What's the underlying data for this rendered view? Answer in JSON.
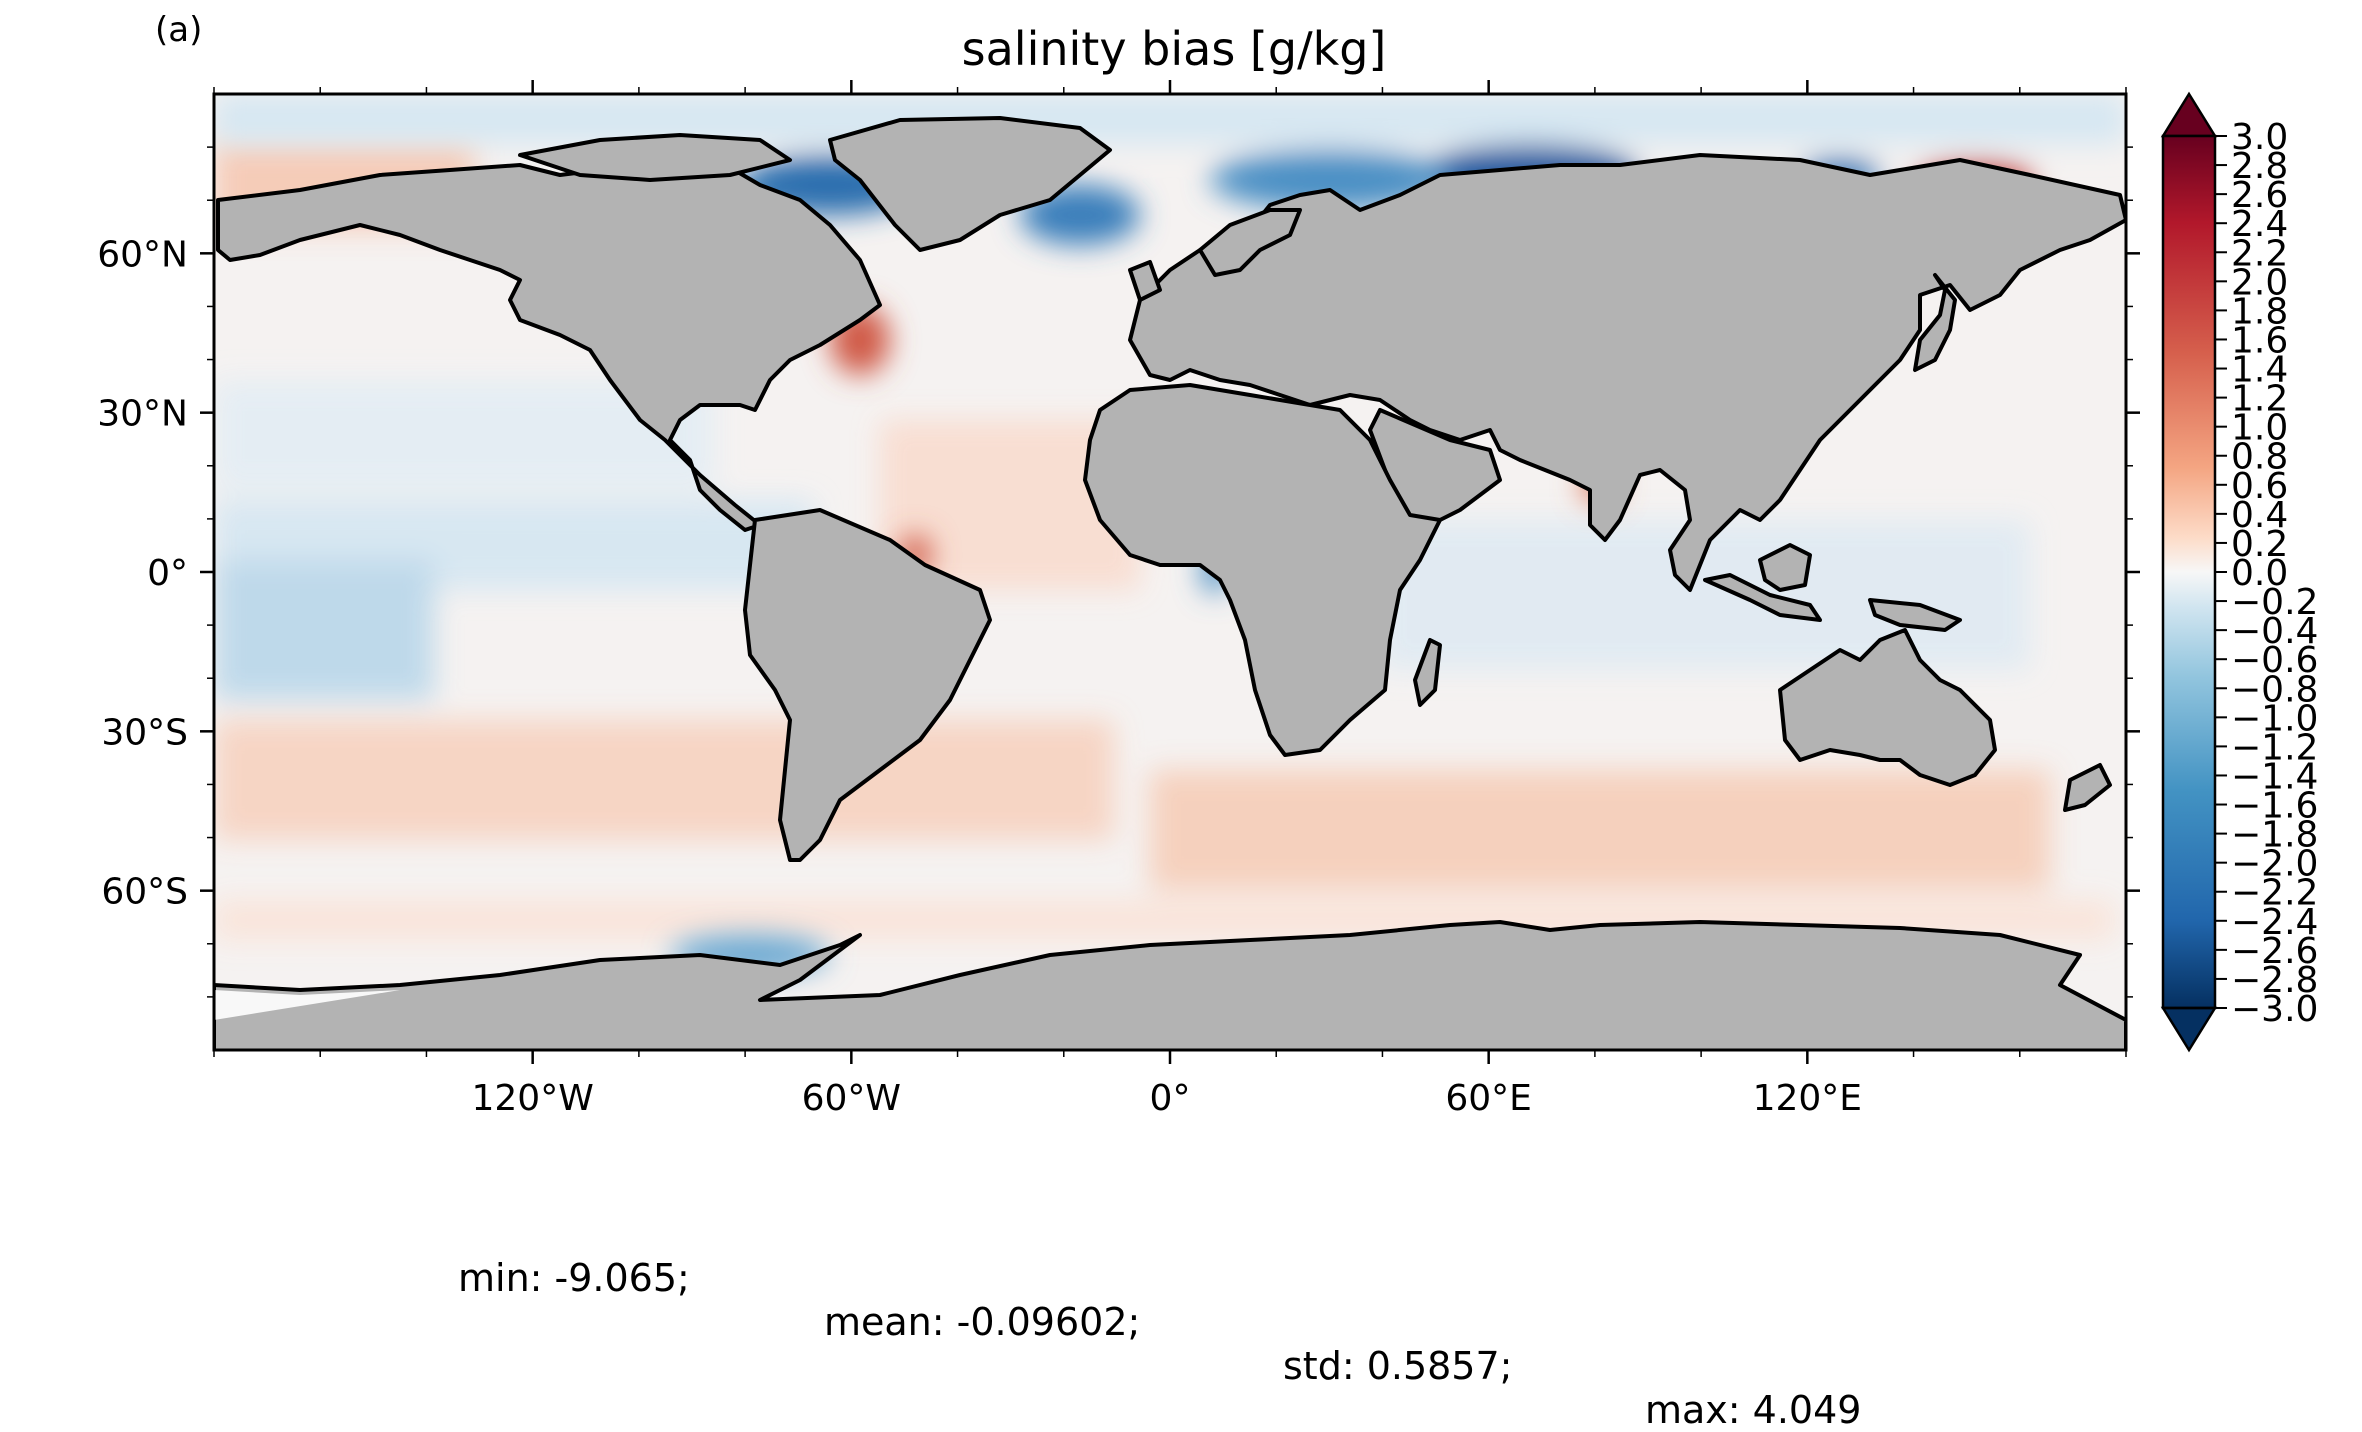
{
  "panel_label": "(a)",
  "title": "salinity bias [g/kg]",
  "map": {
    "projection": "PlateCarree",
    "lon_range": [
      -180,
      180
    ],
    "lat_range": [
      -90,
      90
    ],
    "land_color": "#b3b3b3",
    "coastline_color": "#000000",
    "lat_ticks": [
      {
        "value": 60,
        "label": "60°N"
      },
      {
        "value": 30,
        "label": "30°N"
      },
      {
        "value": 0,
        "label": "0°"
      },
      {
        "value": -30,
        "label": "30°S"
      },
      {
        "value": -60,
        "label": "60°S"
      }
    ],
    "lon_ticks": [
      {
        "value": -120,
        "label": "120°W"
      },
      {
        "value": -60,
        "label": "60°W"
      },
      {
        "value": 0,
        "label": "0°"
      },
      {
        "value": 60,
        "label": "60°E"
      },
      {
        "value": 120,
        "label": "120°E"
      }
    ]
  },
  "colorbar": {
    "colormap": "RdBu_r",
    "min": -3.0,
    "max": 3.0,
    "extend": "both",
    "tick_labels": [
      "3.0",
      "2.8",
      "2.6",
      "2.4",
      "2.2",
      "2.0",
      "1.8",
      "1.6",
      "1.4",
      "1.2",
      "1.0",
      "0.8",
      "0.6",
      "0.4",
      "0.2",
      "0.0",
      "−0.2",
      "−0.4",
      "−0.6",
      "−0.8",
      "−1.0",
      "−1.2",
      "−1.4",
      "−1.6",
      "−1.8",
      "−2.0",
      "−2.2",
      "−2.4",
      "−2.6",
      "−2.8",
      "−3.0"
    ]
  },
  "stats": {
    "min": "min: -9.065;",
    "mean": "mean: -0.09602;",
    "std": "std: 0.5857;",
    "max": "max: 4.049"
  }
}
